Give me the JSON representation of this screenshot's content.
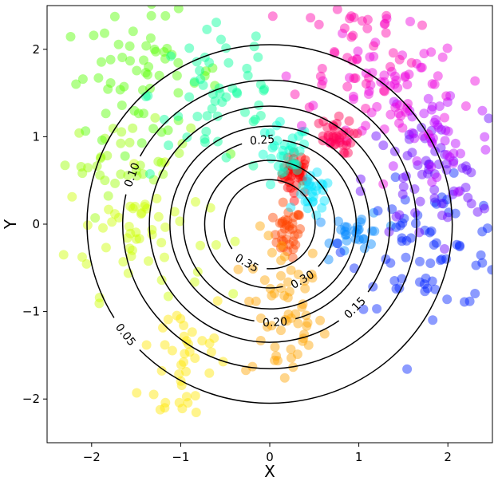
{
  "chart_data": {
    "type": "scatter",
    "title": "",
    "xlabel": "X",
    "ylabel": "Y",
    "xlim": [
      -2.5,
      2.5
    ],
    "ylim": [
      -2.5,
      2.5
    ],
    "x_ticks": [
      -2,
      -1,
      0,
      1,
      2
    ],
    "y_ticks": [
      -2,
      -1,
      0,
      1,
      2
    ],
    "x_tick_labels": [
      "−2",
      "−1",
      "0",
      "1",
      "2"
    ],
    "y_tick_labels": [
      "−2",
      "−1",
      "0",
      "1",
      "2"
    ],
    "grid": false,
    "legend": "none",
    "contours": {
      "center": [
        0,
        0
      ],
      "levels": [
        {
          "value": 0.05,
          "label": "0.05",
          "radius": 2.05,
          "label_angle_deg": 218
        },
        {
          "value": 0.1,
          "label": "0.10",
          "radius": 1.65,
          "label_angle_deg": 160
        },
        {
          "value": 0.15,
          "label": "0.15",
          "radius": 1.35,
          "label_angle_deg": 315
        },
        {
          "value": 0.2,
          "label": "0.20",
          "radius": 1.12,
          "label_angle_deg": 273
        },
        {
          "value": 0.25,
          "label": "0.25",
          "radius": 0.97,
          "label_angle_deg": 95
        },
        {
          "value": 0.3,
          "label": "0.30",
          "radius": 0.73,
          "label_angle_deg": 300
        },
        {
          "value": 0.35,
          "label": "0.35",
          "radius": 0.51,
          "label_angle_deg": 240
        }
      ]
    },
    "point_size_note": "",
    "clusters": [
      {
        "color": "#ff0000",
        "center": [
          0.3,
          0.58
        ],
        "spread": [
          0.08,
          0.12
        ],
        "n": 40
      },
      {
        "color": "#ff4500",
        "center": [
          0.2,
          -0.1
        ],
        "spread": [
          0.08,
          0.14
        ],
        "n": 35
      },
      {
        "color": "#ffa500",
        "center": [
          0.15,
          -1.0
        ],
        "spread": [
          0.22,
          0.45
        ],
        "n": 60
      },
      {
        "color": "#ffe600",
        "center": [
          -0.95,
          -1.55
        ],
        "spread": [
          0.25,
          0.45
        ],
        "n": 40
      },
      {
        "color": "#ccff00",
        "center": [
          -1.5,
          -0.1
        ],
        "spread": [
          0.4,
          0.35
        ],
        "n": 55
      },
      {
        "color": "#99ff00",
        "center": [
          -1.6,
          0.75
        ],
        "spread": [
          0.35,
          0.2
        ],
        "n": 35
      },
      {
        "color": "#55ff00",
        "center": [
          -1.45,
          1.7
        ],
        "spread": [
          0.45,
          0.35
        ],
        "n": 60
      },
      {
        "color": "#00ff99",
        "center": [
          -0.55,
          1.5
        ],
        "spread": [
          0.4,
          0.5
        ],
        "n": 55
      },
      {
        "color": "#00ffcc",
        "center": [
          0.15,
          0.75
        ],
        "spread": [
          0.15,
          0.2
        ],
        "n": 35
      },
      {
        "color": "#00e5ff",
        "center": [
          0.5,
          0.3
        ],
        "spread": [
          0.1,
          0.12
        ],
        "n": 25
      },
      {
        "color": "#0088ff",
        "center": [
          1.0,
          -0.1
        ],
        "spread": [
          0.15,
          0.12
        ],
        "n": 30
      },
      {
        "color": "#0022ff",
        "center": [
          1.8,
          -0.25
        ],
        "spread": [
          0.45,
          0.35
        ],
        "n": 70
      },
      {
        "color": "#6600ff",
        "center": [
          1.75,
          0.5
        ],
        "spread": [
          0.35,
          0.35
        ],
        "n": 60
      },
      {
        "color": "#bb00ff",
        "center": [
          1.9,
          1.0
        ],
        "spread": [
          0.3,
          0.35
        ],
        "n": 40
      },
      {
        "color": "#ee00dd",
        "center": [
          1.35,
          1.6
        ],
        "spread": [
          0.4,
          0.4
        ],
        "n": 70
      },
      {
        "color": "#ff00aa",
        "center": [
          0.95,
          2.0
        ],
        "spread": [
          0.35,
          0.35
        ],
        "n": 40
      },
      {
        "color": "#ff0055",
        "center": [
          0.7,
          1.0
        ],
        "spread": [
          0.12,
          0.1
        ],
        "n": 35
      }
    ],
    "point_alpha": 0.45
  }
}
